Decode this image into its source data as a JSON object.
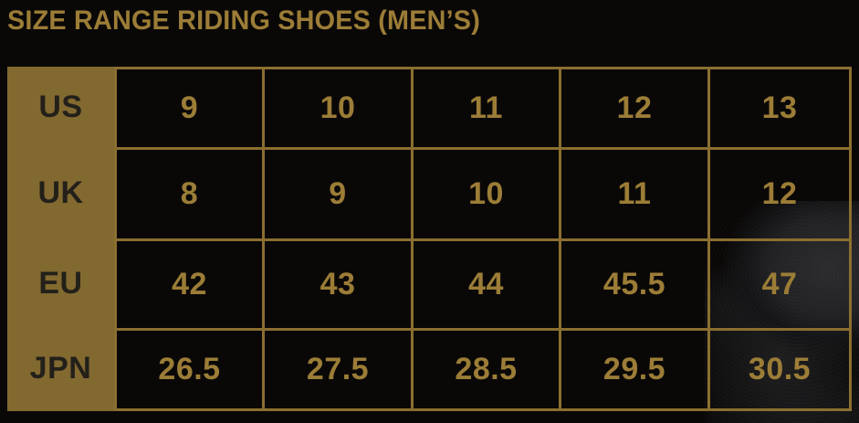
{
  "title": "SIZE RANGE RIDING SHOES (MEN’S)",
  "colors": {
    "background": "#0a0807",
    "gold_text": "#9c7d37",
    "gold_border": "#8b6f30",
    "gold_header_bg": "#826930",
    "header_text": "#23201a"
  },
  "decorations": {
    "background_photo": "riding-shoe-toe-photo"
  },
  "chart_data": {
    "type": "table",
    "title": "SIZE RANGE RIDING SHOES (MEN’S)",
    "legend_position": "left-column-row-labels",
    "grid": "on",
    "rows": [
      {
        "label": "US",
        "values": [
          "9",
          "10",
          "11",
          "12",
          "13"
        ]
      },
      {
        "label": "UK",
        "values": [
          "8",
          "9",
          "10",
          "11",
          "12"
        ]
      },
      {
        "label": "EU",
        "values": [
          "42",
          "43",
          "44",
          "45.5",
          "47"
        ]
      },
      {
        "label": "JPN",
        "values": [
          "26.5",
          "27.5",
          "28.5",
          "29.5",
          "30.5"
        ]
      }
    ]
  }
}
